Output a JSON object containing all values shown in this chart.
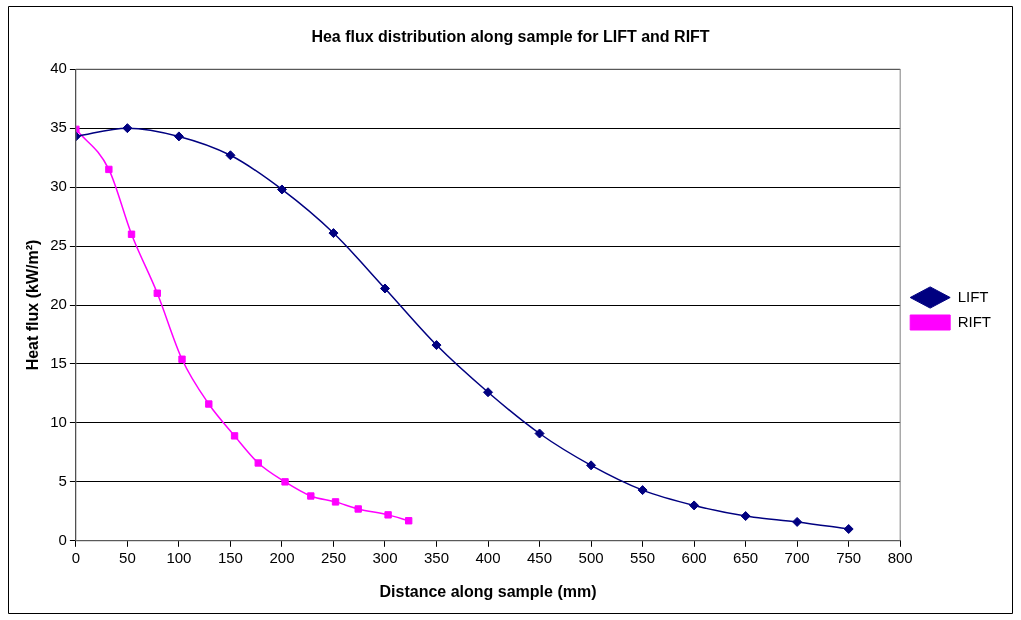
{
  "chart_data": {
    "type": "line",
    "title": "Hea flux distribution along sample for LIFT and RIFT",
    "xlabel": "Distance along sample (mm)",
    "ylabel": "Heat flux (kW/m²)",
    "xlim": [
      0,
      800
    ],
    "xticks": [
      0,
      50,
      100,
      150,
      200,
      250,
      300,
      350,
      400,
      450,
      500,
      550,
      600,
      650,
      700,
      750,
      800
    ],
    "ylim": [
      0,
      40
    ],
    "yticks": [
      0,
      5,
      10,
      15,
      20,
      25,
      30,
      35,
      40
    ],
    "grid": "y",
    "legend": "right",
    "series": [
      {
        "name": "LIFT",
        "color": "#000080",
        "marker": "diamond",
        "x": [
          0,
          50,
          100,
          150,
          200,
          250,
          300,
          350,
          400,
          450,
          500,
          550,
          600,
          650,
          700,
          750
        ],
        "values": [
          34.3,
          35.0,
          34.3,
          32.7,
          29.8,
          26.1,
          21.4,
          16.6,
          12.6,
          9.1,
          6.4,
          4.3,
          3.0,
          2.1,
          1.6,
          1.0
        ]
      },
      {
        "name": "RIFT",
        "color": "#ff00ff",
        "marker": "square",
        "x": [
          0,
          32,
          54,
          79,
          103,
          129,
          154,
          177,
          203,
          228,
          252,
          274,
          303,
          323
        ],
        "values": [
          34.9,
          31.5,
          26.0,
          21.0,
          15.4,
          11.6,
          8.9,
          6.6,
          5.0,
          3.8,
          3.3,
          2.7,
          2.2,
          1.7
        ]
      }
    ]
  }
}
